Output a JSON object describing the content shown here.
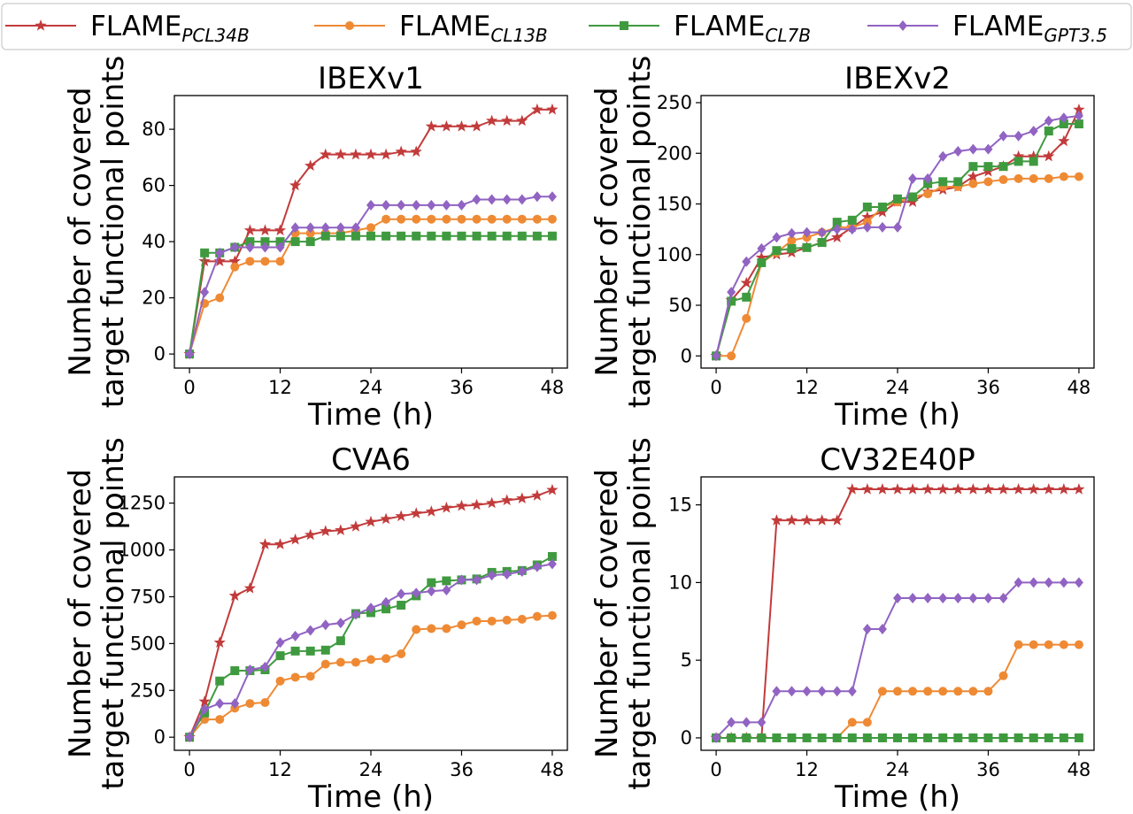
{
  "legend": {
    "entries": [
      {
        "base": "FLAME",
        "sub": "PCL34B",
        "color": "#c23b3b",
        "marker": "star"
      },
      {
        "base": "FLAME",
        "sub": "CL13B",
        "color": "#ef8a34",
        "marker": "circle"
      },
      {
        "base": "FLAME",
        "sub": "CL7B",
        "color": "#3f9a3f",
        "marker": "square"
      },
      {
        "base": "FLAME",
        "sub": "GPT3.5",
        "color": "#9163c2",
        "marker": "diamond"
      }
    ]
  },
  "chart_data": [
    {
      "type": "line",
      "title": "IBEXv1",
      "xlabel": "Time (h)",
      "ylabel_lines": [
        "Number of covered",
        "target functional points"
      ],
      "xlim": [
        -2,
        50
      ],
      "ylim": [
        -5,
        92
      ],
      "xticks": [
        0,
        12,
        24,
        36,
        48
      ],
      "yticks": [
        0,
        20,
        40,
        60,
        80
      ],
      "x": [
        0,
        2,
        4,
        6,
        8,
        10,
        12,
        14,
        16,
        18,
        20,
        22,
        24,
        26,
        28,
        30,
        32,
        34,
        36,
        38,
        40,
        42,
        44,
        46,
        48
      ],
      "series": [
        {
          "name": "FLAME_PCL34B",
          "values": [
            0,
            33,
            33,
            33,
            44,
            44,
            44,
            60,
            67,
            71,
            71,
            71,
            71,
            71,
            72,
            72,
            81,
            81,
            81,
            81,
            83,
            83,
            83,
            87,
            87
          ]
        },
        {
          "name": "FLAME_CL13B",
          "values": [
            0,
            18,
            20,
            31,
            33,
            33,
            33,
            43,
            43,
            43,
            43,
            44,
            45,
            48,
            48,
            48,
            48,
            48,
            48,
            48,
            48,
            48,
            48,
            48,
            48
          ]
        },
        {
          "name": "FLAME_CL7B",
          "values": [
            0,
            36,
            36,
            38,
            40,
            40,
            40,
            40,
            40,
            42,
            42,
            42,
            42,
            42,
            42,
            42,
            42,
            42,
            42,
            42,
            42,
            42,
            42,
            42,
            42
          ]
        },
        {
          "name": "FLAME_GPT3.5",
          "values": [
            0,
            22,
            36,
            38,
            38,
            38,
            38,
            45,
            45,
            45,
            45,
            45,
            53,
            53,
            53,
            53,
            53,
            53,
            53,
            55,
            55,
            55,
            55,
            56,
            56
          ]
        }
      ]
    },
    {
      "type": "line",
      "title": "IBEXv2",
      "xlabel": "Time (h)",
      "ylabel_lines": [
        "Number of covered",
        "target functional points"
      ],
      "xlim": [
        -2,
        50
      ],
      "ylim": [
        -12,
        257
      ],
      "xticks": [
        0,
        12,
        24,
        36,
        48
      ],
      "yticks": [
        0,
        50,
        100,
        150,
        200,
        250
      ],
      "x": [
        0,
        2,
        4,
        6,
        8,
        10,
        12,
        14,
        16,
        18,
        20,
        22,
        24,
        26,
        28,
        30,
        32,
        34,
        36,
        38,
        40,
        42,
        44,
        46,
        48
      ],
      "series": [
        {
          "name": "FLAME_PCL34B",
          "values": [
            0,
            55,
            72,
            97,
            100,
            102,
            107,
            112,
            117,
            127,
            137,
            142,
            152,
            152,
            162,
            164,
            167,
            177,
            182,
            187,
            197,
            197,
            197,
            212,
            243
          ]
        },
        {
          "name": "FLAME_CL13B",
          "values": [
            0,
            0,
            37,
            92,
            102,
            114,
            117,
            122,
            127,
            127,
            132,
            147,
            152,
            157,
            160,
            167,
            167,
            170,
            172,
            174,
            175,
            175,
            175,
            177,
            177
          ]
        },
        {
          "name": "FLAME_CL7B",
          "values": [
            0,
            54,
            58,
            92,
            104,
            106,
            107,
            112,
            132,
            134,
            147,
            147,
            155,
            157,
            170,
            172,
            172,
            187,
            187,
            187,
            192,
            192,
            222,
            229,
            229
          ]
        },
        {
          "name": "FLAME_GPT3.5",
          "values": [
            0,
            63,
            93,
            106,
            117,
            121,
            122,
            122,
            125,
            125,
            127,
            127,
            127,
            175,
            175,
            197,
            202,
            204,
            204,
            217,
            217,
            222,
            232,
            235,
            237
          ]
        }
      ]
    },
    {
      "type": "line",
      "title": "CVA6",
      "xlabel": "Time (h)",
      "ylabel_lines": [
        "Number of covered",
        "target functional points"
      ],
      "xlim": [
        -2,
        50
      ],
      "ylim": [
        -70,
        1390
      ],
      "xticks": [
        0,
        12,
        24,
        36,
        48
      ],
      "yticks": [
        0,
        250,
        500,
        750,
        1000,
        1250
      ],
      "x": [
        0,
        2,
        4,
        6,
        8,
        10,
        12,
        14,
        16,
        18,
        20,
        22,
        24,
        26,
        28,
        30,
        32,
        34,
        36,
        38,
        40,
        42,
        44,
        46,
        48
      ],
      "series": [
        {
          "name": "FLAME_PCL34B",
          "values": [
            0,
            190,
            505,
            755,
            795,
            1030,
            1030,
            1055,
            1080,
            1100,
            1105,
            1125,
            1150,
            1165,
            1180,
            1195,
            1205,
            1225,
            1235,
            1240,
            1250,
            1265,
            1275,
            1290,
            1320
          ]
        },
        {
          "name": "FLAME_CL13B",
          "values": [
            0,
            95,
            95,
            155,
            180,
            185,
            300,
            320,
            325,
            390,
            400,
            400,
            415,
            420,
            445,
            575,
            580,
            580,
            600,
            620,
            620,
            625,
            630,
            645,
            650
          ]
        },
        {
          "name": "FLAME_CL7B",
          "values": [
            0,
            130,
            300,
            355,
            355,
            360,
            435,
            460,
            460,
            465,
            515,
            660,
            665,
            685,
            705,
            755,
            825,
            835,
            840,
            845,
            880,
            885,
            890,
            920,
            965
          ]
        },
        {
          "name": "FLAME_GPT3.5",
          "values": [
            0,
            150,
            180,
            180,
            360,
            375,
            505,
            540,
            570,
            600,
            610,
            655,
            690,
            720,
            765,
            770,
            780,
            785,
            840,
            840,
            865,
            870,
            885,
            910,
            925
          ]
        }
      ]
    },
    {
      "type": "line",
      "title": "CV32E40P",
      "xlabel": "Time (h)",
      "ylabel_lines": [
        "Number of covered",
        "target functional points"
      ],
      "xlim": [
        -2,
        50
      ],
      "ylim": [
        -0.8,
        16.8
      ],
      "xticks": [
        0,
        12,
        24,
        36,
        48
      ],
      "yticks": [
        0,
        5,
        10,
        15
      ],
      "x": [
        0,
        2,
        4,
        6,
        8,
        10,
        12,
        14,
        16,
        18,
        20,
        22,
        24,
        26,
        28,
        30,
        32,
        34,
        36,
        38,
        40,
        42,
        44,
        46,
        48
      ],
      "series": [
        {
          "name": "FLAME_PCL34B",
          "values": [
            0,
            0,
            0,
            0,
            14,
            14,
            14,
            14,
            14,
            16,
            16,
            16,
            16,
            16,
            16,
            16,
            16,
            16,
            16,
            16,
            16,
            16,
            16,
            16,
            16
          ]
        },
        {
          "name": "FLAME_CL13B",
          "values": [
            0,
            0,
            0,
            0,
            0,
            0,
            0,
            0,
            0,
            1,
            1,
            3,
            3,
            3,
            3,
            3,
            3,
            3,
            3,
            4,
            6,
            6,
            6,
            6,
            6
          ]
        },
        {
          "name": "FLAME_CL7B",
          "values": [
            0,
            0,
            0,
            0,
            0,
            0,
            0,
            0,
            0,
            0,
            0,
            0,
            0,
            0,
            0,
            0,
            0,
            0,
            0,
            0,
            0,
            0,
            0,
            0,
            0
          ]
        },
        {
          "name": "FLAME_GPT3.5",
          "values": [
            0,
            1,
            1,
            1,
            3,
            3,
            3,
            3,
            3,
            3,
            7,
            7,
            9,
            9,
            9,
            9,
            9,
            9,
            9,
            9,
            10,
            10,
            10,
            10,
            10
          ]
        }
      ]
    }
  ]
}
